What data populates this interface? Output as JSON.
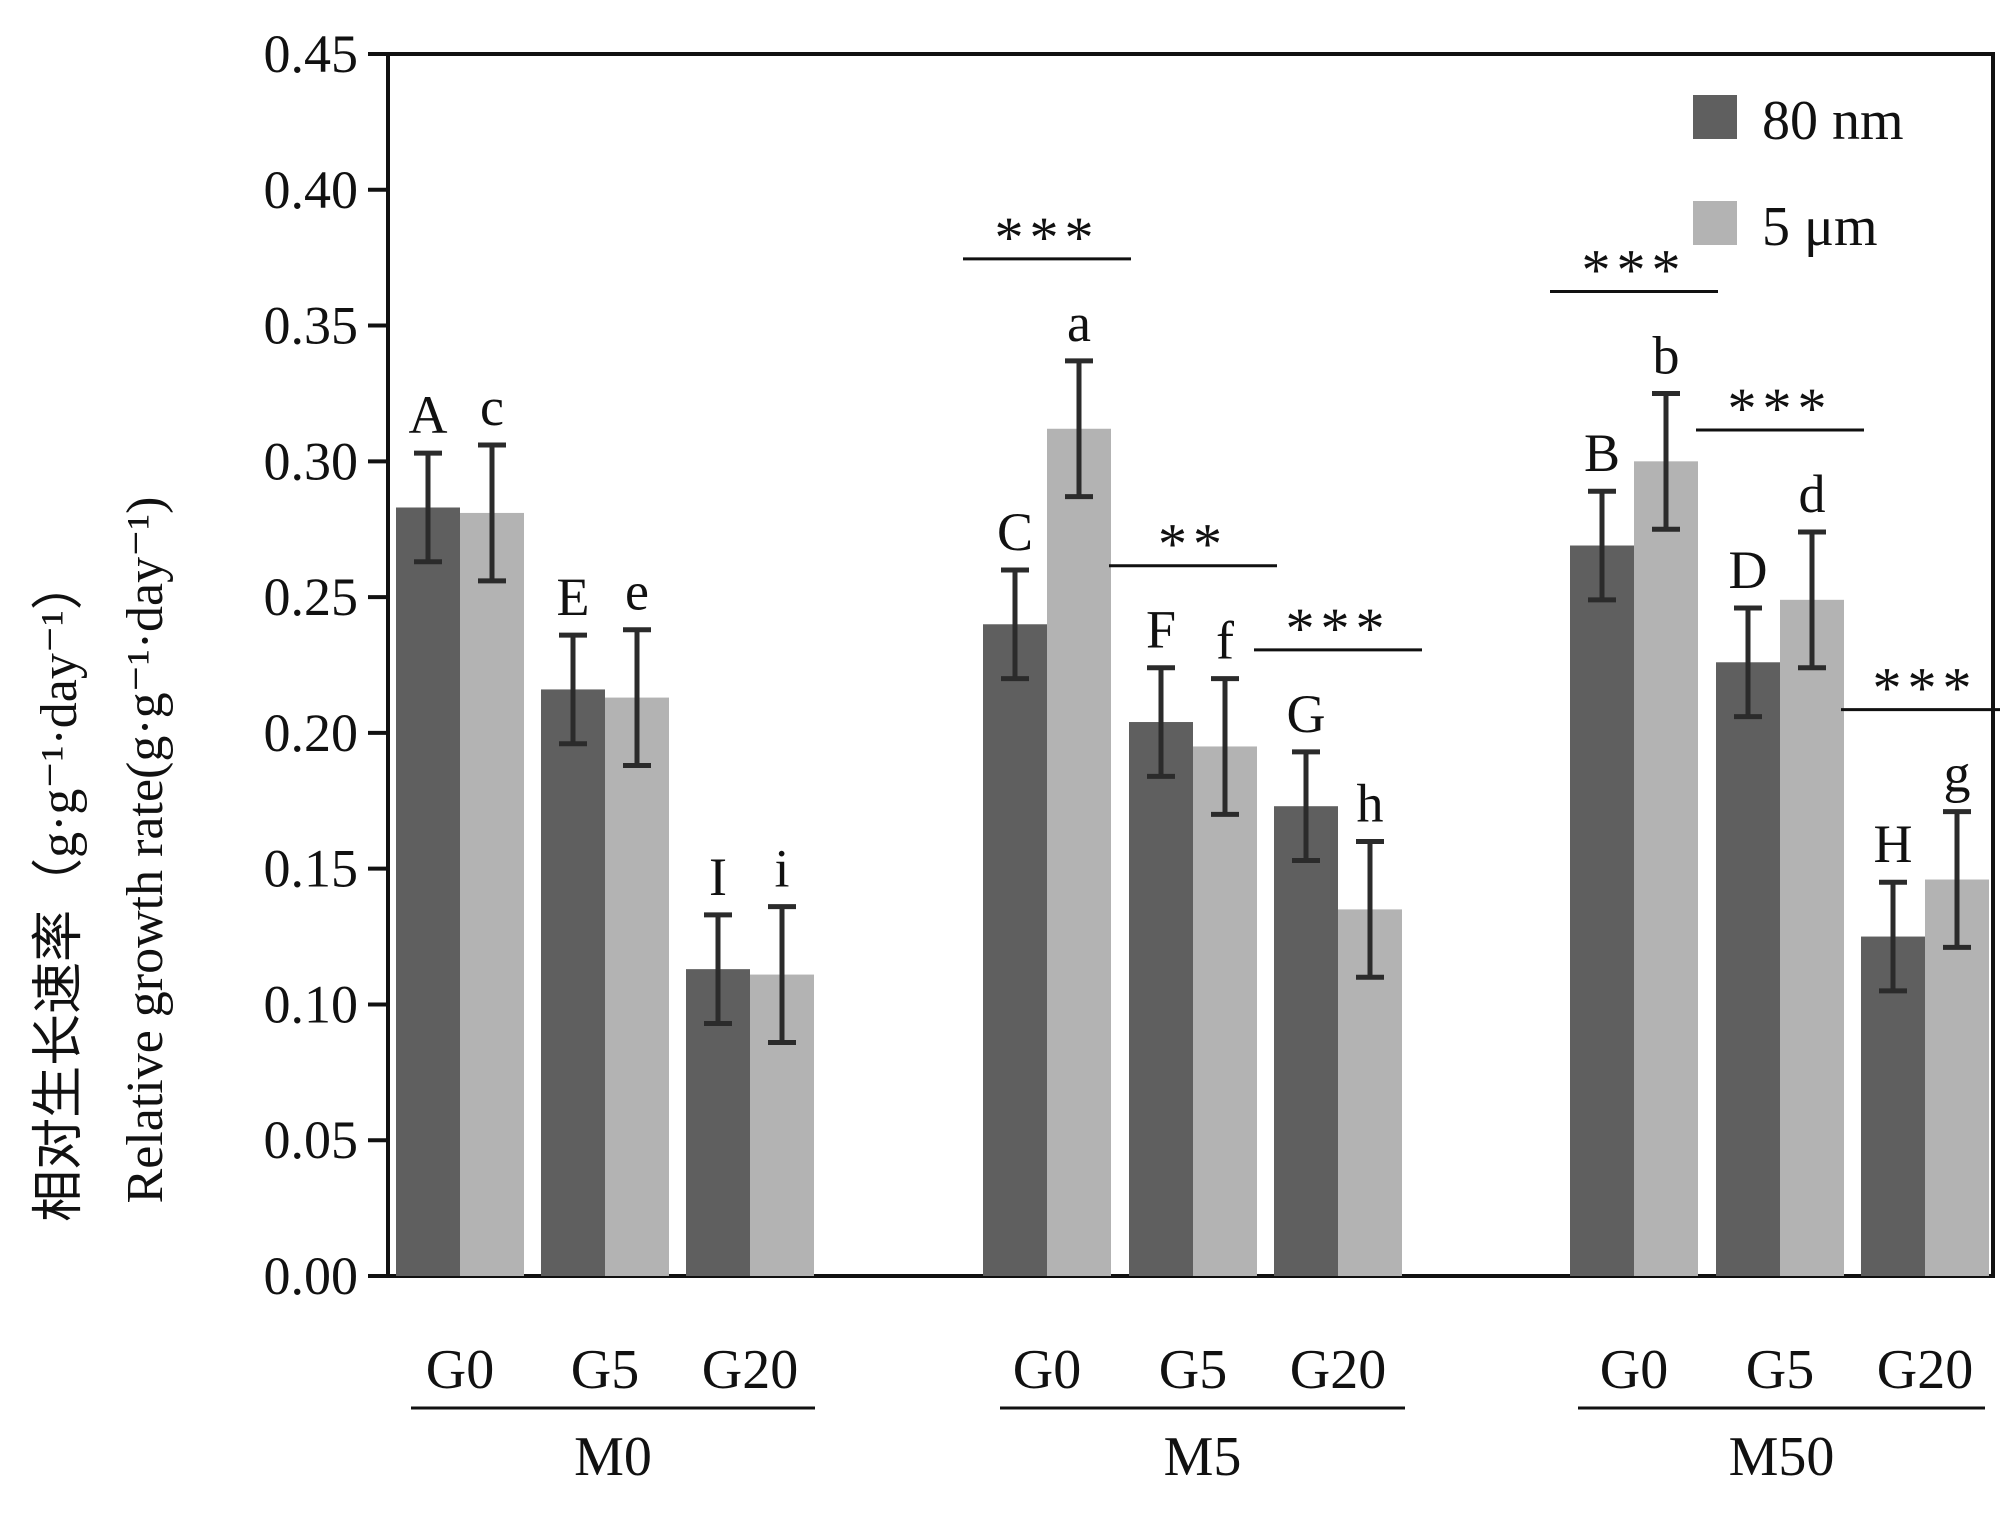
{
  "chart_data": {
    "type": "bar",
    "title": "",
    "ylabel_cn": "相对生长速率（g·g⁻¹·day⁻¹）",
    "ylabel_en": "Relative growth rate(g·g⁻¹·day⁻¹)",
    "ylim": [
      0,
      0.45
    ],
    "yticks": [
      "0.00",
      "0.05",
      "0.10",
      "0.15",
      "0.20",
      "0.25",
      "0.30",
      "0.35",
      "0.40",
      "0.45"
    ],
    "legend_position": "top-right",
    "series": [
      {
        "name": "80 nm",
        "color": "#5f5f5f"
      },
      {
        "name": "5 μm",
        "color": "#b3b3b3"
      }
    ],
    "groups": [
      {
        "label": "M0",
        "categories": [
          {
            "label": "G0",
            "values": [
              0.283,
              0.281
            ],
            "errors": [
              0.02,
              0.025
            ],
            "letters": [
              "A",
              "c"
            ],
            "sig": ""
          },
          {
            "label": "G5",
            "values": [
              0.216,
              0.213
            ],
            "errors": [
              0.02,
              0.025
            ],
            "letters": [
              "E",
              "e"
            ],
            "sig": ""
          },
          {
            "label": "G20",
            "values": [
              0.113,
              0.111
            ],
            "errors": [
              0.02,
              0.025
            ],
            "letters": [
              "I",
              "i"
            ],
            "sig": ""
          }
        ]
      },
      {
        "label": "M5",
        "categories": [
          {
            "label": "G0",
            "values": [
              0.24,
              0.312
            ],
            "errors": [
              0.02,
              0.025
            ],
            "letters": [
              "C",
              "a"
            ],
            "sig": "***"
          },
          {
            "label": "G5",
            "values": [
              0.204,
              0.195
            ],
            "errors": [
              0.02,
              0.025
            ],
            "letters": [
              "F",
              "f"
            ],
            "sig": "**"
          },
          {
            "label": "G20",
            "values": [
              0.173,
              0.135
            ],
            "errors": [
              0.02,
              0.025
            ],
            "letters": [
              "G",
              "h"
            ],
            "sig": "***"
          }
        ]
      },
      {
        "label": "M50",
        "categories": [
          {
            "label": "G0",
            "values": [
              0.269,
              0.3
            ],
            "errors": [
              0.02,
              0.025
            ],
            "letters": [
              "B",
              "b"
            ],
            "sig": "***"
          },
          {
            "label": "G5",
            "values": [
              0.226,
              0.249
            ],
            "errors": [
              0.02,
              0.025
            ],
            "letters": [
              "D",
              "d"
            ],
            "sig": "***"
          },
          {
            "label": "G20",
            "values": [
              0.125,
              0.146
            ],
            "errors": [
              0.02,
              0.025
            ],
            "letters": [
              "H",
              "g"
            ],
            "sig": "***"
          }
        ]
      }
    ]
  }
}
